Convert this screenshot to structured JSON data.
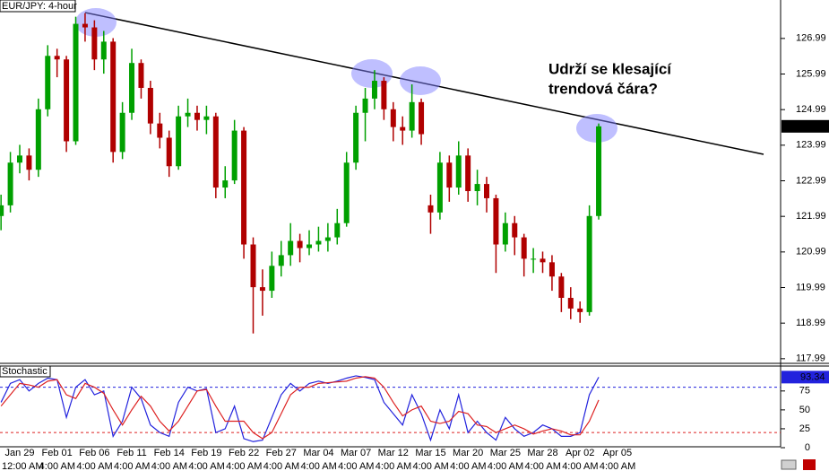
{
  "chart_data": [
    {
      "type": "candlestick",
      "title": "EUR/JPY: 4-hour",
      "annotation": [
        "Udrží se klesající",
        "trendová čára?"
      ],
      "categories": [
        null,
        null,
        "Jan 29",
        null,
        null,
        null,
        "Feb 01",
        null,
        null,
        null,
        "Feb 06",
        null,
        null,
        null,
        "Feb 11",
        null,
        null,
        null,
        "Feb 14",
        null,
        null,
        null,
        "Feb 19",
        null,
        null,
        null,
        "Feb 22",
        null,
        null,
        null,
        "Feb 27",
        null,
        null,
        null,
        "Mar 04",
        null,
        null,
        null,
        "Mar 07",
        null,
        null,
        null,
        "Mar 12",
        null,
        null,
        null,
        "Mar 15",
        null,
        null,
        null,
        "Mar 20",
        null,
        null,
        null,
        "Mar 25",
        null,
        null,
        null,
        "Mar 28",
        null,
        null,
        null,
        "Apr 02",
        null,
        null,
        null,
        "Apr 05"
      ],
      "time_labels": [
        null,
        null,
        "12:00 AM",
        null,
        null,
        null,
        "4:00 AM",
        null,
        null,
        null,
        "4:00 AM",
        null,
        null,
        null,
        "4:00 AM",
        null,
        null,
        null,
        "4:00 AM",
        null,
        null,
        null,
        "4:00 AM",
        null,
        null,
        null,
        "4:00 AM",
        null,
        null,
        null,
        "4:00 AM",
        null,
        null,
        null,
        "4:00 AM",
        null,
        null,
        null,
        "4:00 AM",
        null,
        null,
        null,
        "4:00 AM",
        null,
        null,
        null,
        "4:00 AM",
        null,
        null,
        null,
        "4:00 AM",
        null,
        null,
        null,
        "4:00 AM",
        null,
        null,
        null,
        "4:00 AM",
        null,
        null,
        null,
        "4:00 AM",
        null,
        null,
        null,
        "4:00 AM"
      ],
      "open": [
        122.0,
        122.3,
        123.5,
        123.7,
        123.3,
        125.0,
        126.5,
        126.4,
        124.1,
        127.4,
        127.3,
        126.4,
        126.9,
        123.8,
        124.9,
        126.3,
        125.6,
        124.6,
        124.2,
        123.4,
        124.8,
        124.9,
        124.7,
        124.8,
        122.8,
        123.0,
        124.4,
        121.2,
        120.0,
        119.9,
        120.6,
        120.9,
        121.3,
        121.1,
        121.2,
        121.3,
        121.4,
        121.8,
        123.5,
        124.9,
        125.3,
        125.8,
        125.0,
        124.5,
        124.4,
        125.2,
        122.3,
        122.1,
        123.5,
        122.8,
        123.7,
        122.7,
        122.9,
        122.5,
        121.2,
        121.8,
        121.4,
        120.8,
        120.8,
        120.7,
        120.3,
        119.7,
        119.4,
        119.3,
        122.0,
        null,
        null
      ],
      "high": [
        122.6,
        123.8,
        124.0,
        123.9,
        125.3,
        126.8,
        126.7,
        126.5,
        127.6,
        127.7,
        127.5,
        127.2,
        127.0,
        125.2,
        126.7,
        126.4,
        125.8,
        124.9,
        124.4,
        125.1,
        125.3,
        125.1,
        125.1,
        124.9,
        123.4,
        124.7,
        124.5,
        121.4,
        120.5,
        121.0,
        121.3,
        121.8,
        121.5,
        121.6,
        121.7,
        121.8,
        122.2,
        123.8,
        125.1,
        125.6,
        126.1,
        125.9,
        125.2,
        124.8,
        125.7,
        125.3,
        122.6,
        123.8,
        123.7,
        124.1,
        123.9,
        123.3,
        123.1,
        122.6,
        122.1,
        122.0,
        121.5,
        121.1,
        121.0,
        120.9,
        120.4,
        120.0,
        119.6,
        122.3,
        124.6,
        null,
        null
      ],
      "low": [
        121.6,
        122.1,
        123.2,
        123.0,
        123.1,
        124.8,
        125.9,
        123.8,
        124.0,
        126.9,
        126.1,
        126.0,
        123.5,
        123.6,
        124.7,
        125.3,
        124.3,
        123.9,
        123.1,
        123.3,
        124.5,
        124.4,
        124.3,
        122.5,
        122.5,
        122.9,
        120.8,
        118.7,
        119.2,
        119.7,
        120.3,
        120.6,
        120.7,
        120.9,
        121.0,
        121.0,
        121.2,
        121.7,
        123.3,
        124.1,
        125.0,
        124.7,
        124.1,
        124.0,
        124.2,
        124.0,
        121.5,
        121.9,
        122.4,
        122.6,
        122.4,
        122.3,
        122.1,
        120.4,
        121.0,
        120.9,
        120.3,
        120.4,
        120.4,
        119.9,
        119.3,
        119.1,
        119.0,
        119.2,
        121.9,
        null,
        null
      ],
      "close": [
        122.3,
        123.5,
        123.7,
        123.3,
        125.0,
        126.5,
        126.4,
        124.1,
        127.4,
        127.3,
        126.4,
        126.9,
        123.8,
        124.9,
        126.3,
        125.6,
        124.6,
        124.2,
        123.4,
        124.8,
        124.9,
        124.7,
        124.8,
        122.8,
        123.0,
        124.4,
        121.2,
        120.0,
        119.9,
        120.6,
        120.9,
        121.3,
        121.1,
        121.2,
        121.3,
        121.4,
        121.8,
        123.5,
        124.9,
        125.3,
        125.8,
        125.0,
        124.5,
        124.4,
        125.2,
        124.3,
        122.1,
        123.5,
        122.8,
        123.7,
        122.7,
        122.9,
        122.5,
        121.2,
        121.8,
        121.4,
        120.8,
        120.8,
        120.7,
        120.3,
        119.7,
        119.4,
        119.3,
        122.0,
        124.52,
        null,
        null
      ],
      "up_color": "#00a000",
      "down_color": "#b00000",
      "ylim": [
        117.86,
        128.07
      ],
      "yticks": [
        117.99,
        118.99,
        119.99,
        120.99,
        121.99,
        122.99,
        123.99,
        124.99,
        125.99,
        126.99
      ]
    },
    {
      "type": "line",
      "title": "Stochastic",
      "series": [
        {
          "color": "#2222dd",
          "values": [
            60,
            85,
            90,
            75,
            85,
            92,
            90,
            40,
            80,
            90,
            70,
            75,
            15,
            35,
            80,
            65,
            30,
            20,
            15,
            60,
            80,
            75,
            78,
            20,
            25,
            55,
            12,
            8,
            10,
            40,
            70,
            85,
            75,
            85,
            88,
            85,
            88,
            92,
            95,
            93,
            90,
            60,
            45,
            30,
            70,
            45,
            10,
            50,
            25,
            70,
            20,
            35,
            20,
            10,
            40,
            25,
            15,
            20,
            30,
            25,
            15,
            15,
            20,
            70,
            93.34,
            null,
            null
          ]
        },
        {
          "color": "#dd2222",
          "values": [
            55,
            70,
            85,
            83,
            80,
            88,
            90,
            70,
            65,
            85,
            80,
            72,
            50,
            30,
            50,
            68,
            55,
            35,
            22,
            35,
            55,
            75,
            77,
            55,
            35,
            35,
            35,
            20,
            12,
            20,
            45,
            70,
            80,
            80,
            85,
            86,
            87,
            88,
            92,
            94,
            92,
            80,
            60,
            42,
            50,
            55,
            35,
            32,
            35,
            48,
            45,
            30,
            28,
            20,
            25,
            30,
            25,
            18,
            22,
            25,
            22,
            17,
            17,
            35,
            63,
            null,
            null
          ]
        }
      ],
      "levels": [
        {
          "value": 80,
          "color": "#2222dd"
        },
        {
          "value": 20,
          "color": "#dd2222"
        }
      ],
      "ylim": [
        0,
        108
      ],
      "yticks": [
        0,
        25,
        50,
        75
      ]
    }
  ]
}
